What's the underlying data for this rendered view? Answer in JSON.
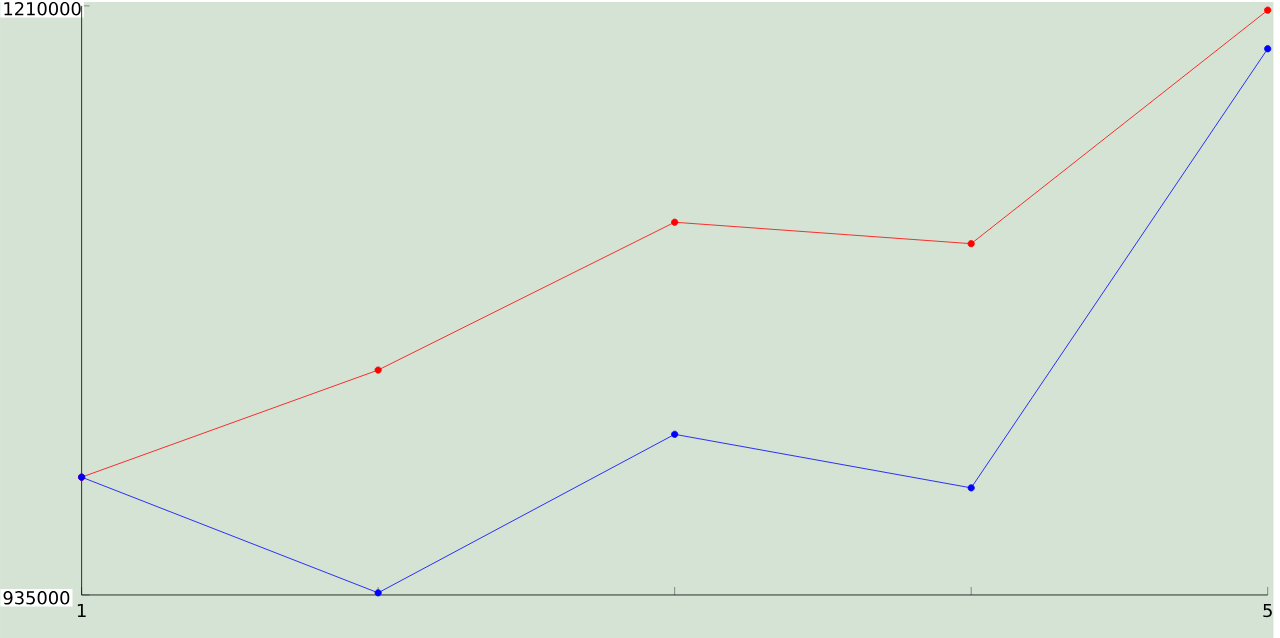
{
  "chart_data": {
    "type": "line",
    "x": [
      1,
      2,
      3,
      4,
      5
    ],
    "xlim": [
      1,
      5
    ],
    "xticks": [
      1,
      {
        "value": 2,
        "label": null
      },
      {
        "value": 3,
        "label": null
      },
      {
        "value": 4,
        "label": null
      },
      5
    ],
    "ylim": [
      935000,
      1210000
    ],
    "yticks": [
      935000,
      1210000
    ],
    "marker": "circle",
    "grid": false,
    "series": [
      {
        "color": "#ff0000",
        "values": [
          990000,
          1040000,
          1109000,
          1099000,
          1208000
        ]
      },
      {
        "color": "#0000ff",
        "values": [
          990000,
          936000,
          1010000,
          985000,
          1190000
        ]
      }
    ]
  }
}
